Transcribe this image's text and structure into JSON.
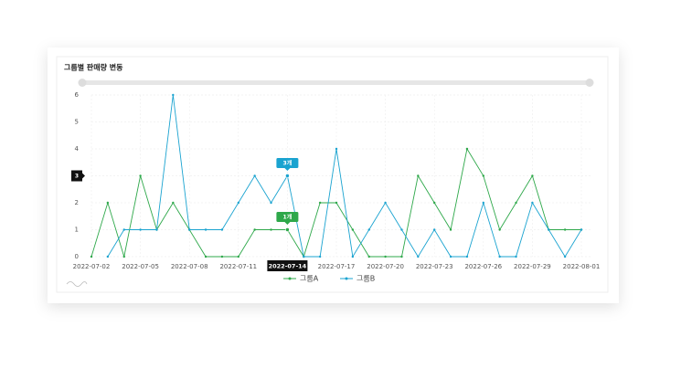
{
  "chart_data": {
    "type": "line",
    "title": "그룹별 판매량 변동",
    "categories": [
      "2022-07-02",
      null,
      null,
      "2022-07-05",
      null,
      null,
      "2022-07-08",
      null,
      null,
      "2022-07-11",
      null,
      null,
      "2022-07-14",
      null,
      null,
      "2022-07-17",
      null,
      null,
      "2022-07-20",
      null,
      null,
      "2022-07-23",
      null,
      null,
      "2022-07-26",
      null,
      null,
      "2022-07-29",
      null,
      null,
      "2022-08-01"
    ],
    "series": [
      {
        "name": "그룹A",
        "color": "#2ea84a",
        "values": [
          0,
          2,
          0,
          3,
          1,
          2,
          1,
          0,
          0,
          0,
          1,
          1,
          1,
          0,
          2,
          2,
          1,
          0,
          0,
          0,
          3,
          2,
          1,
          4,
          3,
          1,
          2,
          3,
          1,
          1,
          1
        ]
      },
      {
        "name": "그룹B",
        "color": "#1aa3d0",
        "values": [
          null,
          0,
          1,
          1,
          1,
          6,
          1,
          1,
          1,
          2,
          3,
          2,
          3,
          0,
          0,
          4,
          0,
          1,
          2,
          1,
          0,
          1,
          0,
          0,
          2,
          0,
          0,
          2,
          1,
          0,
          1
        ]
      }
    ],
    "ylim": [
      0,
      6
    ],
    "yticks": [
      0,
      1,
      2,
      3,
      4,
      5,
      6
    ],
    "grid": true,
    "legend": "bottom",
    "crosshair_x": "2022-07-14",
    "crosshair_y": 3,
    "crosshair_labels": [
      "1개",
      "3개"
    ]
  }
}
